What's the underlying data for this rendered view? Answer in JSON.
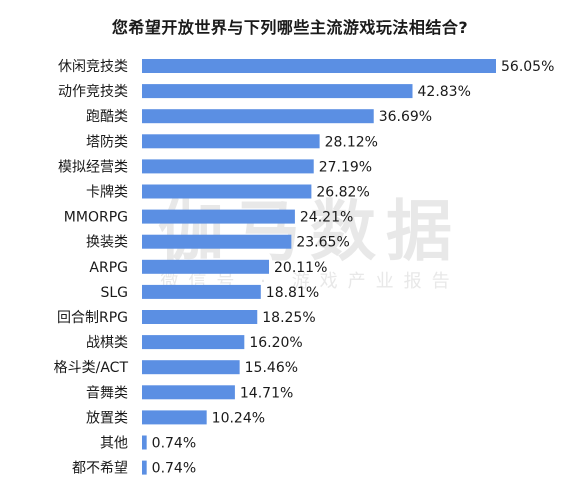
{
  "watermark": {
    "main": "伽马数据",
    "sub": "微信号 · 游戏产业报告"
  },
  "chart_data": {
    "type": "bar",
    "orientation": "horizontal",
    "title": "您希望开放世界与下列哪些主流游戏玩法相结合?",
    "categories": [
      "休闲竞技类",
      "动作竞技类",
      "跑酷类",
      "塔防类",
      "模拟经营类",
      "卡牌类",
      "MMORPG",
      "换装类",
      "ARPG",
      "SLG",
      "回合制RPG",
      "战棋类",
      "格斗类/ACT",
      "音舞类",
      "放置类",
      "其他",
      "都不希望"
    ],
    "values": [
      56.05,
      42.83,
      36.69,
      28.12,
      27.19,
      26.82,
      24.21,
      23.65,
      20.11,
      18.81,
      18.25,
      16.2,
      15.46,
      14.71,
      10.24,
      0.74,
      0.74
    ],
    "value_labels": [
      "56.05%",
      "42.83%",
      "36.69%",
      "28.12%",
      "27.19%",
      "26.82%",
      "24.21%",
      "23.65%",
      "20.11%",
      "18.81%",
      "18.25%",
      "16.20%",
      "15.46%",
      "14.71%",
      "10.24%",
      "0.74%",
      "0.74%"
    ],
    "bar_color": "#5b8fe3",
    "xlim": [
      0,
      56.05
    ],
    "grid": false,
    "legend": "none"
  }
}
